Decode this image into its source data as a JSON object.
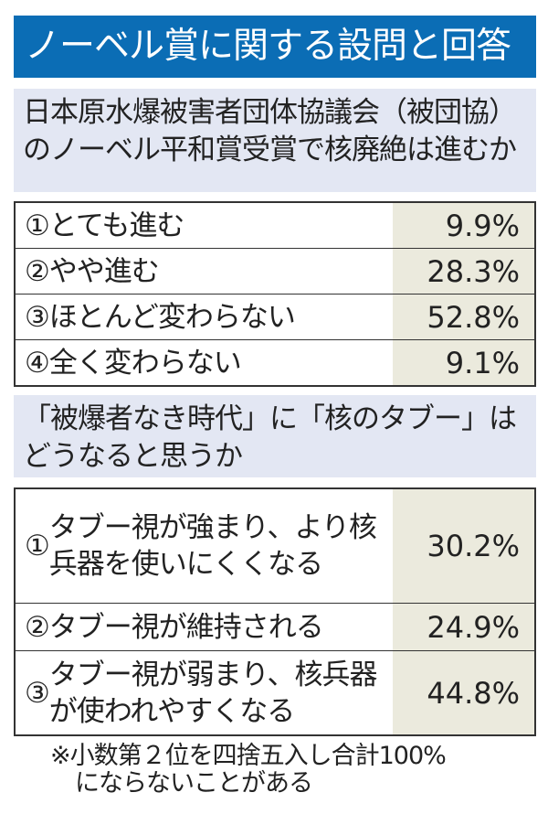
{
  "title": "ノーベル賞に関する設問と回答",
  "chart_data": [
    {
      "type": "table",
      "question": "日本原水爆被害者団体協議会（被団協）のノーベル平和賞受賞で核廃絶は進むか",
      "rows": [
        {
          "num": "①",
          "label": "とても進む",
          "value": "9.9%"
        },
        {
          "num": "②",
          "label": "やや進む",
          "value": "28.3%"
        },
        {
          "num": "③",
          "label": "ほとんど変わらない",
          "value": "52.8%"
        },
        {
          "num": "④",
          "label": "全く変わらない",
          "value": "9.1%"
        }
      ]
    },
    {
      "type": "table",
      "question": "「被爆者なき時代」に「核のタブー」はどうなると思うか",
      "rows": [
        {
          "num": "①",
          "label": "タブー視が強まり、より核兵器を使いにくくなる",
          "value": "30.2%"
        },
        {
          "num": "②",
          "label": "タブー視が維持される",
          "value": "24.9%"
        },
        {
          "num": "③",
          "label": "タブー視が弱まり、核兵器が使われやすくなる",
          "value": "44.8%"
        }
      ]
    }
  ],
  "footnote": [
    "※小数第２位を四捨五入し合計100%",
    "にならないことがある"
  ],
  "colors": {
    "title_bg": "#0b6db5",
    "question_bg": "#e3e7f3",
    "value_bg": "#ebeadd"
  }
}
